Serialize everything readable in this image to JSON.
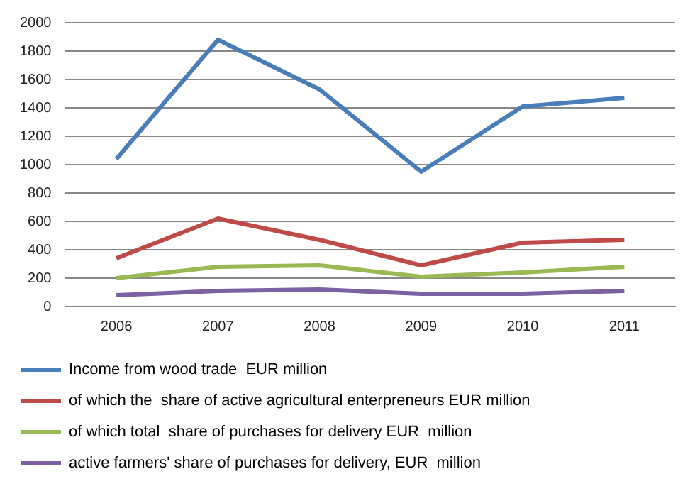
{
  "chart_data": {
    "type": "line",
    "categories": [
      "2006",
      "2007",
      "2008",
      "2009",
      "2010",
      "2011"
    ],
    "series": [
      {
        "name": "Income from wood trade  EUR million",
        "color": "#4a7ebb",
        "values": [
          1040,
          1880,
          1530,
          950,
          1410,
          1470
        ]
      },
      {
        "name": "of which the  share of active agricultural enterpreneurs EUR million",
        "color": "#be4b48",
        "values": [
          340,
          620,
          470,
          290,
          450,
          470
        ]
      },
      {
        "name": "of which total  share of purchases for delivery EUR  million",
        "color": "#98b954",
        "values": [
          200,
          280,
          290,
          210,
          240,
          280
        ]
      },
      {
        "name": "active farmers' share of purchases for delivery, EUR  million",
        "color": "#7d60a0",
        "values": [
          80,
          110,
          120,
          90,
          90,
          110
        ]
      }
    ],
    "ylim": [
      0,
      2000
    ],
    "yticks": [
      0,
      200,
      400,
      600,
      800,
      1000,
      1200,
      1400,
      1600,
      1800,
      2000
    ],
    "grid": "y",
    "legend": "bottom",
    "marker": "none",
    "line_style": "solid"
  }
}
